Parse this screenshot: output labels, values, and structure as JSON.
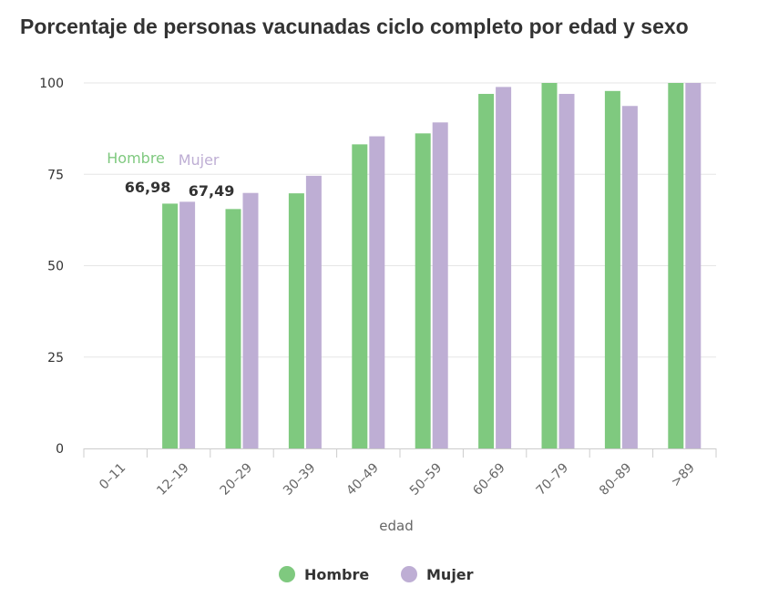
{
  "chart_data": {
    "type": "bar",
    "title": "Porcentaje de personas vacunadas ciclo completo por edad y sexo",
    "xlabel": "edad",
    "ylabel": "",
    "ylim": [
      0,
      100
    ],
    "yticks": [
      "0",
      "25",
      "50",
      "75",
      "100"
    ],
    "grid": true,
    "legend_position": "bottom-center",
    "categories": [
      "0–11",
      "12–19",
      "20–29",
      "30–39",
      "40–49",
      "50–59",
      "60–69",
      "70–79",
      "80–89",
      ">89"
    ],
    "series": [
      {
        "name": "Hombre",
        "color": "#7fc97f",
        "values": [
          null,
          66.98,
          65.5,
          69.8,
          83.2,
          86.2,
          97.0,
          100,
          97.8,
          100
        ]
      },
      {
        "name": "Mujer",
        "color": "#beaed4",
        "values": [
          null,
          67.49,
          69.9,
          74.6,
          85.4,
          89.2,
          98.9,
          97.0,
          93.7,
          100
        ]
      }
    ],
    "annotations": {
      "hombre_label": "Hombre",
      "mujer_label": "Mujer",
      "hombre_value": "66,98",
      "mujer_value": "67,49"
    }
  }
}
